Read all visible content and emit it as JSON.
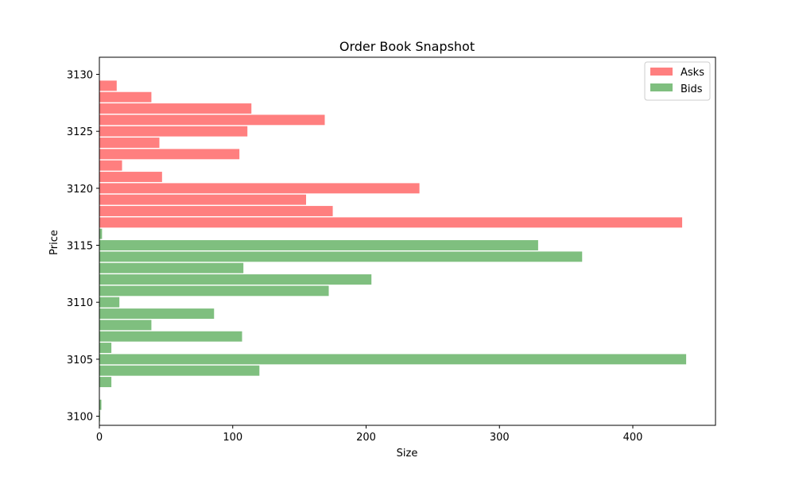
{
  "chart_data": {
    "type": "bar",
    "orientation": "horizontal",
    "title": "Order Book Snapshot",
    "xlabel": "Size",
    "ylabel": "Price",
    "xlim": [
      0,
      462
    ],
    "ylim": [
      3099.2,
      3131.5
    ],
    "xticks": [
      0,
      100,
      200,
      300,
      400
    ],
    "yticks": [
      3100,
      3105,
      3110,
      3115,
      3120,
      3125,
      3130
    ],
    "grid": false,
    "legend_position": "top-right",
    "series": [
      {
        "name": "Asks",
        "color": "#ff7f7f",
        "points": [
          {
            "price": 3117,
            "size": 437
          },
          {
            "price": 3118,
            "size": 175
          },
          {
            "price": 3119,
            "size": 155
          },
          {
            "price": 3120,
            "size": 240
          },
          {
            "price": 3121,
            "size": 47
          },
          {
            "price": 3122,
            "size": 17
          },
          {
            "price": 3123,
            "size": 105
          },
          {
            "price": 3124,
            "size": 45
          },
          {
            "price": 3125,
            "size": 111
          },
          {
            "price": 3126,
            "size": 169
          },
          {
            "price": 3127,
            "size": 114
          },
          {
            "price": 3128,
            "size": 39
          },
          {
            "price": 3129,
            "size": 13
          }
        ]
      },
      {
        "name": "Bids",
        "color": "#7fbf7f",
        "points": [
          {
            "price": 3100,
            "size": 0.5
          },
          {
            "price": 3101,
            "size": 1.5
          },
          {
            "price": 3103,
            "size": 9
          },
          {
            "price": 3104,
            "size": 120
          },
          {
            "price": 3105,
            "size": 440
          },
          {
            "price": 3106,
            "size": 9
          },
          {
            "price": 3107,
            "size": 107
          },
          {
            "price": 3108,
            "size": 39
          },
          {
            "price": 3109,
            "size": 86
          },
          {
            "price": 3110,
            "size": 15
          },
          {
            "price": 3111,
            "size": 172
          },
          {
            "price": 3112,
            "size": 204
          },
          {
            "price": 3113,
            "size": 108
          },
          {
            "price": 3114,
            "size": 362
          },
          {
            "price": 3115,
            "size": 329
          },
          {
            "price": 3116,
            "size": 2
          }
        ]
      }
    ],
    "overlap_color": "#808040",
    "bar_height_units": 0.9
  }
}
